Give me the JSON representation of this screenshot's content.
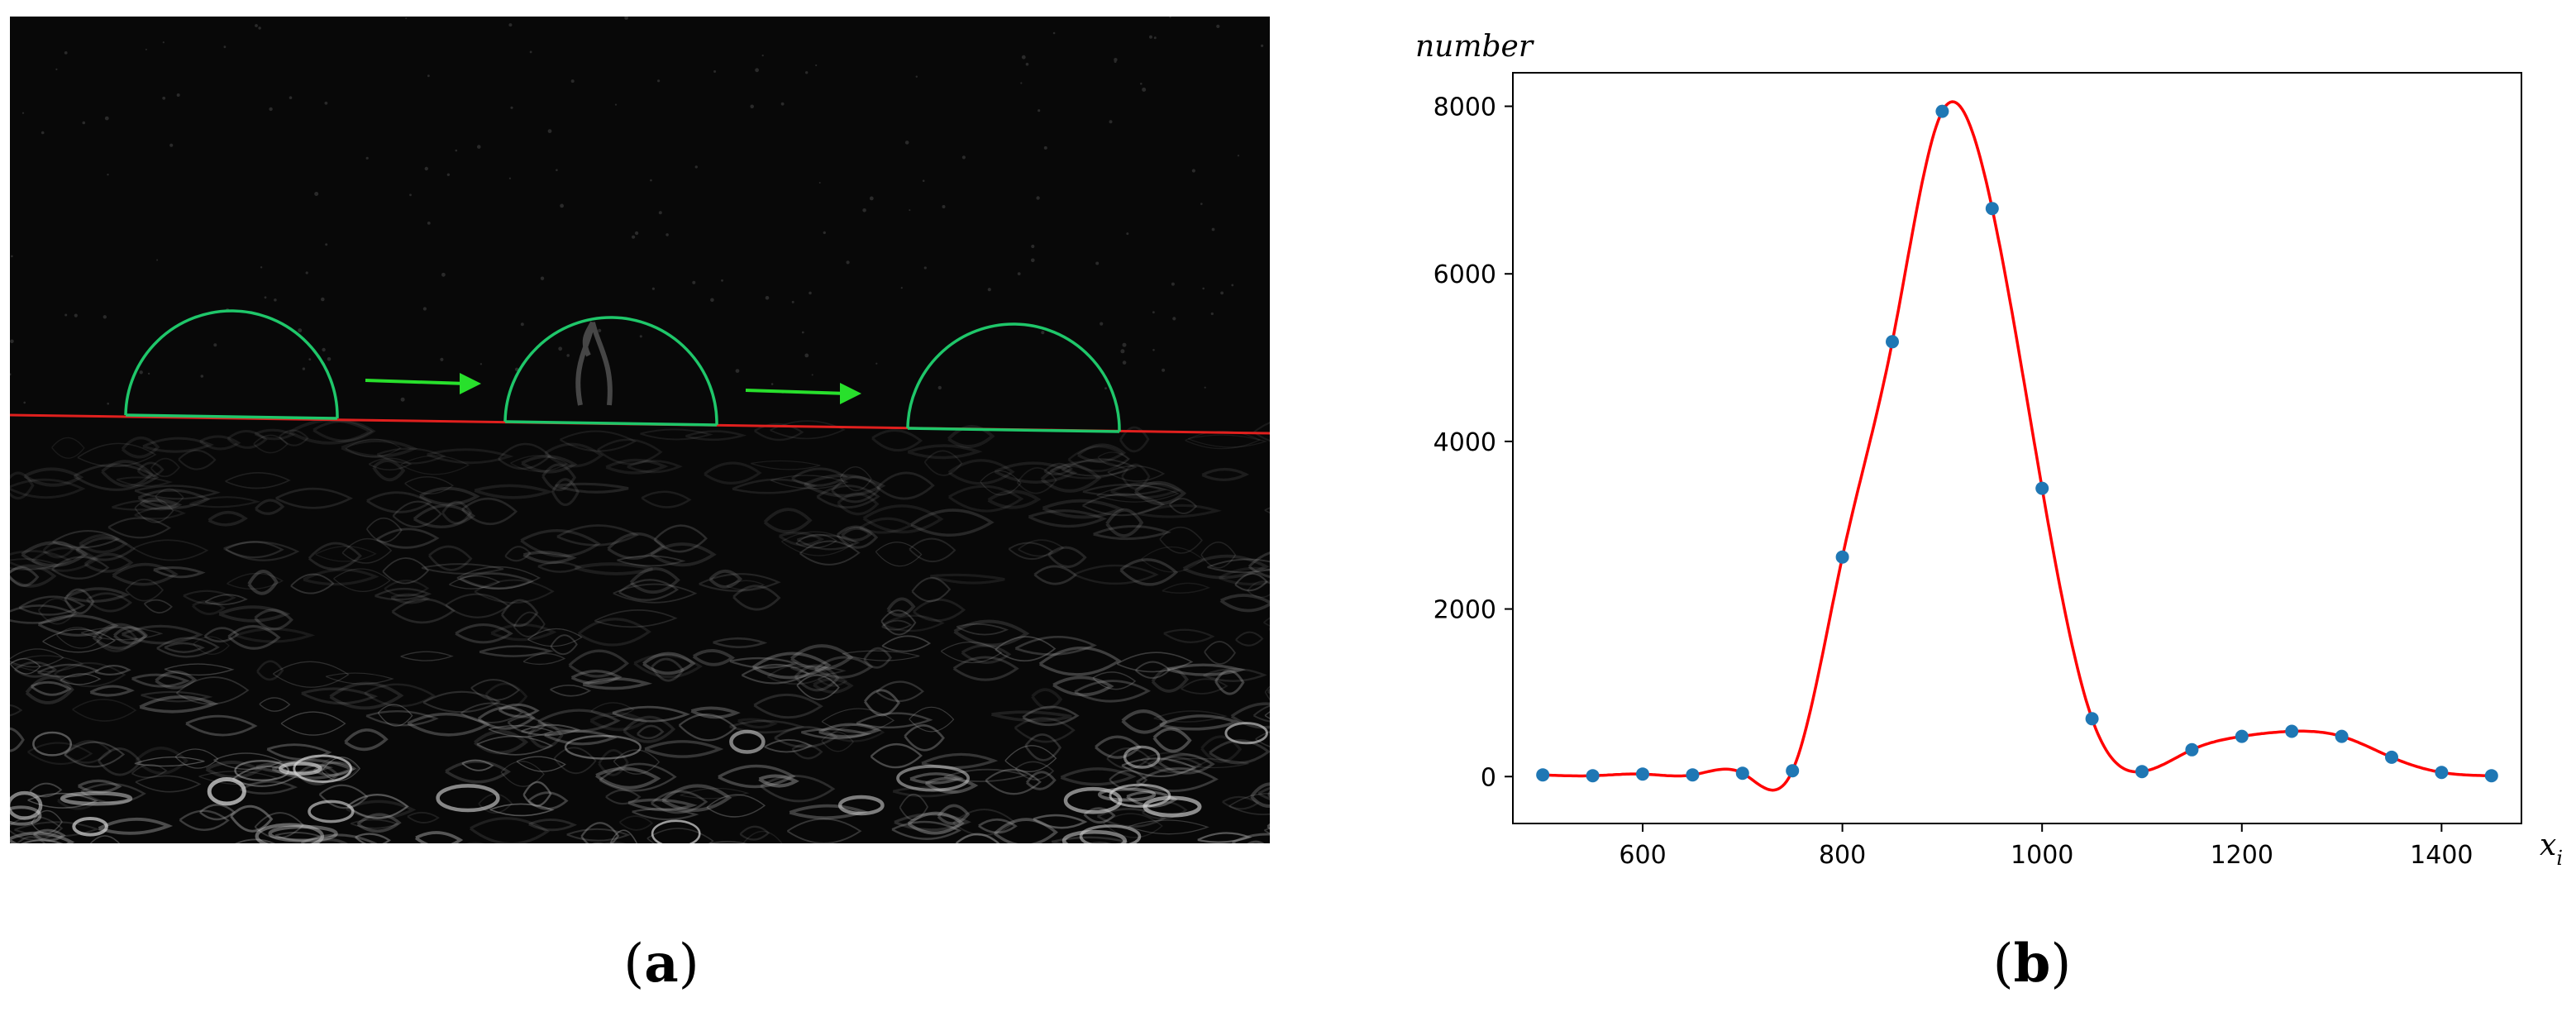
{
  "panel_a": {
    "caption_letter": "a",
    "colors": {
      "background": "#080808",
      "baseline": "#e0201e",
      "dome": "#1fc76a",
      "arrow": "#28e02c",
      "texture": "#9a9a9a"
    },
    "dome_count": 3,
    "arrow_count": 2
  },
  "panel_b": {
    "caption_letter": "b"
  },
  "chart_data": {
    "type": "scatter",
    "ylabel": "number",
    "xlabel": "x",
    "xlabel_subscript": "i",
    "xlim": [
      470,
      1480
    ],
    "ylim": [
      -560,
      8400
    ],
    "xticks": [
      600,
      800,
      1000,
      1200,
      1400
    ],
    "yticks": [
      0,
      2000,
      4000,
      6000,
      8000
    ],
    "grid": false,
    "curve_color": "#ff0000",
    "point_color": "#1f77b4",
    "series": [
      {
        "x": [
          500,
          550,
          600,
          650,
          700,
          750,
          800,
          850,
          900,
          950,
          1000,
          1050,
          1100,
          1150,
          1200,
          1250,
          1300,
          1350,
          1400,
          1450
        ],
        "y": [
          20,
          10,
          30,
          20,
          40,
          70,
          2620,
          5190,
          7940,
          6780,
          3440,
          690,
          60,
          320,
          480,
          540,
          480,
          230,
          50,
          10
        ]
      }
    ]
  }
}
